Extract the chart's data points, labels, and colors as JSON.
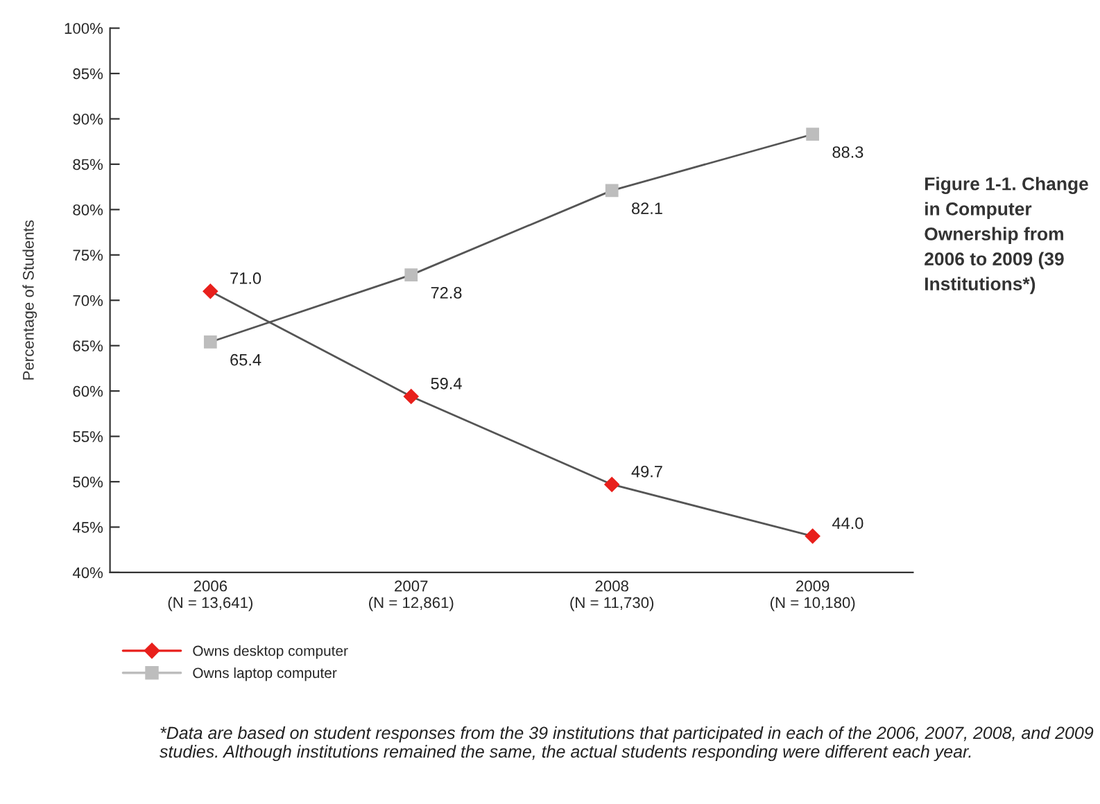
{
  "chart_data": {
    "type": "line",
    "title": "Figure 1-1. Change in Computer Ownership from 2006 to 2009 (39 Institutions*)",
    "ylabel": "Percentage of Students",
    "categories": [
      "2006\n(N = 13,641)",
      "2007\n(N = 12,861)",
      "2008\n(N = 11,730)",
      "2009\n(N = 10,180)"
    ],
    "series": [
      {
        "name": "Owns desktop computer",
        "color": "#e8201c",
        "marker": "diamond",
        "values": [
          71.0,
          59.4,
          49.7,
          44.0
        ],
        "value_labels": [
          "71.0",
          "59.4",
          "49.7",
          "44.0"
        ]
      },
      {
        "name": "Owns laptop computer",
        "color": "#bdbdbd",
        "marker": "square",
        "values": [
          65.4,
          72.8,
          82.1,
          88.3
        ],
        "value_labels": [
          "65.4",
          "72.8",
          "82.1",
          "88.3"
        ]
      }
    ],
    "ylim": [
      40,
      100
    ],
    "yticks": [
      {
        "value": 40,
        "label": "40%"
      },
      {
        "value": 45,
        "label": "45%"
      },
      {
        "value": 50,
        "label": "50%"
      },
      {
        "value": 55,
        "label": "55%"
      },
      {
        "value": 60,
        "label": "60%"
      },
      {
        "value": 65,
        "label": "65%"
      },
      {
        "value": 70,
        "label": "70%"
      },
      {
        "value": 75,
        "label": "75%"
      },
      {
        "value": 80,
        "label": "80%"
      },
      {
        "value": 85,
        "label": "85%"
      },
      {
        "value": 90,
        "label": "90%"
      },
      {
        "value": 95,
        "label": "95%"
      },
      {
        "value": 100,
        "label": "100%"
      }
    ],
    "legend": "bottom left",
    "grid": false,
    "line_style": "solid",
    "annotations": [
      "*Data are based on student responses from the 39 institutions that participated in each of the 2006, 2007, 2008, and 2009 studies. Although institutions remained the same, the actual students responding were different each year."
    ]
  }
}
